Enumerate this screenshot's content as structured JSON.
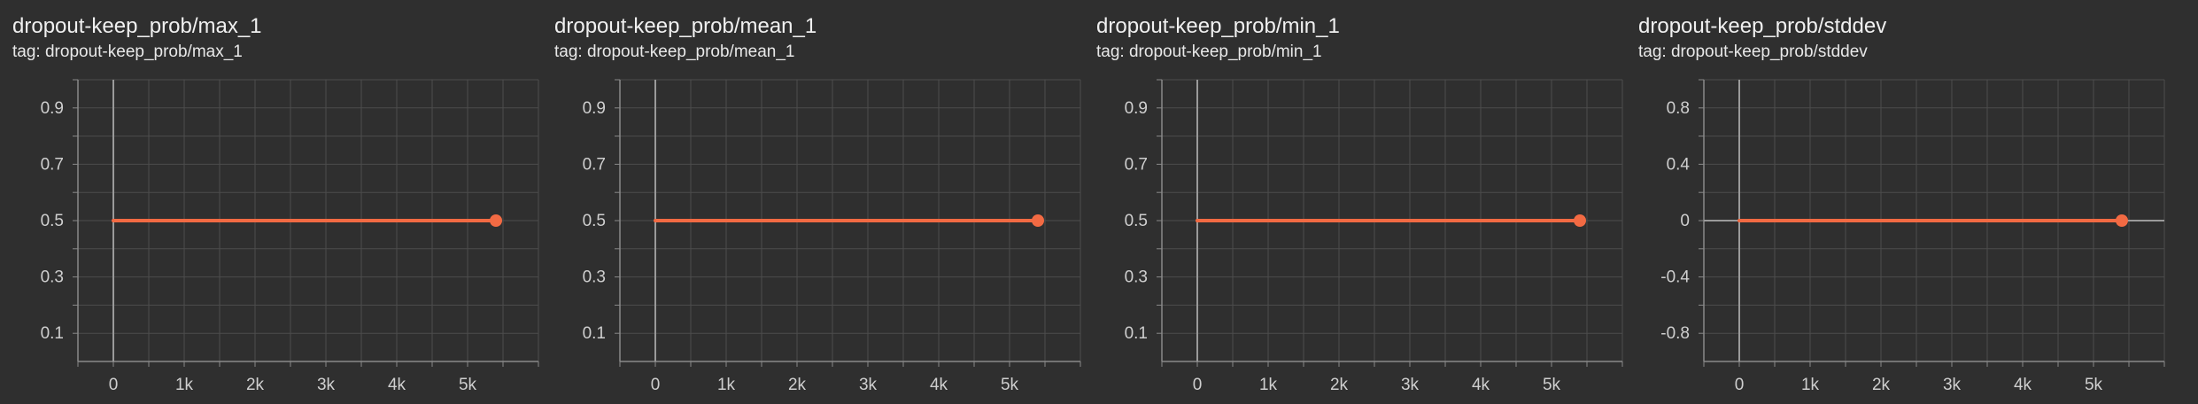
{
  "theme": {
    "background": "#2f2f2f",
    "grid": "#4d4d4d",
    "axis": "#8a8a8a",
    "zero_line": "#9a9a9a",
    "series_color": "#f26a43",
    "text": "#e6e6e6"
  },
  "tag_prefix": "tag:",
  "chart_data": [
    {
      "type": "line",
      "title": "dropout-keep_prob/max_1",
      "tag": "dropout-keep_prob/max_1",
      "xlabel": "",
      "ylabel": "",
      "xlim": [
        -500,
        6000
      ],
      "ylim": [
        0,
        1.0
      ],
      "x_ticks": [
        0,
        1000,
        2000,
        3000,
        4000,
        5000
      ],
      "x_tick_labels": [
        "0",
        "1k",
        "2k",
        "3k",
        "4k",
        "5k"
      ],
      "y_ticks": [
        0.1,
        0.3,
        0.5,
        0.7,
        0.9
      ],
      "y_tick_labels": [
        "0.1",
        "0.3",
        "0.5",
        "0.7",
        "0.9"
      ],
      "grid": true,
      "series": [
        {
          "x": [
            0,
            5400
          ],
          "y": [
            0.5,
            0.5
          ]
        }
      ]
    },
    {
      "type": "line",
      "title": "dropout-keep_prob/mean_1",
      "tag": "dropout-keep_prob/mean_1",
      "xlabel": "",
      "ylabel": "",
      "xlim": [
        -500,
        6000
      ],
      "ylim": [
        0,
        1.0
      ],
      "x_ticks": [
        0,
        1000,
        2000,
        3000,
        4000,
        5000
      ],
      "x_tick_labels": [
        "0",
        "1k",
        "2k",
        "3k",
        "4k",
        "5k"
      ],
      "y_ticks": [
        0.1,
        0.3,
        0.5,
        0.7,
        0.9
      ],
      "y_tick_labels": [
        "0.1",
        "0.3",
        "0.5",
        "0.7",
        "0.9"
      ],
      "grid": true,
      "series": [
        {
          "x": [
            0,
            5400
          ],
          "y": [
            0.5,
            0.5
          ]
        }
      ]
    },
    {
      "type": "line",
      "title": "dropout-keep_prob/min_1",
      "tag": "dropout-keep_prob/min_1",
      "xlabel": "",
      "ylabel": "",
      "xlim": [
        -500,
        6000
      ],
      "ylim": [
        0,
        1.0
      ],
      "x_ticks": [
        0,
        1000,
        2000,
        3000,
        4000,
        5000
      ],
      "x_tick_labels": [
        "0",
        "1k",
        "2k",
        "3k",
        "4k",
        "5k"
      ],
      "y_ticks": [
        0.1,
        0.3,
        0.5,
        0.7,
        0.9
      ],
      "y_tick_labels": [
        "0.1",
        "0.3",
        "0.5",
        "0.7",
        "0.9"
      ],
      "grid": true,
      "series": [
        {
          "x": [
            0,
            5400
          ],
          "y": [
            0.5,
            0.5
          ]
        }
      ]
    },
    {
      "type": "line",
      "title": "dropout-keep_prob/stddev",
      "tag": "dropout-keep_prob/stddev",
      "xlabel": "",
      "ylabel": "",
      "xlim": [
        -500,
        6000
      ],
      "ylim": [
        -1.0,
        1.0
      ],
      "x_ticks": [
        0,
        1000,
        2000,
        3000,
        4000,
        5000
      ],
      "x_tick_labels": [
        "0",
        "1k",
        "2k",
        "3k",
        "4k",
        "5k"
      ],
      "y_ticks": [
        -0.8,
        -0.4,
        0,
        0.4,
        0.8
      ],
      "y_tick_labels": [
        "-0.8",
        "-0.4",
        "0",
        "0.4",
        "0.8"
      ],
      "grid": true,
      "series": [
        {
          "x": [
            0,
            5400
          ],
          "y": [
            0,
            0
          ]
        }
      ]
    }
  ]
}
